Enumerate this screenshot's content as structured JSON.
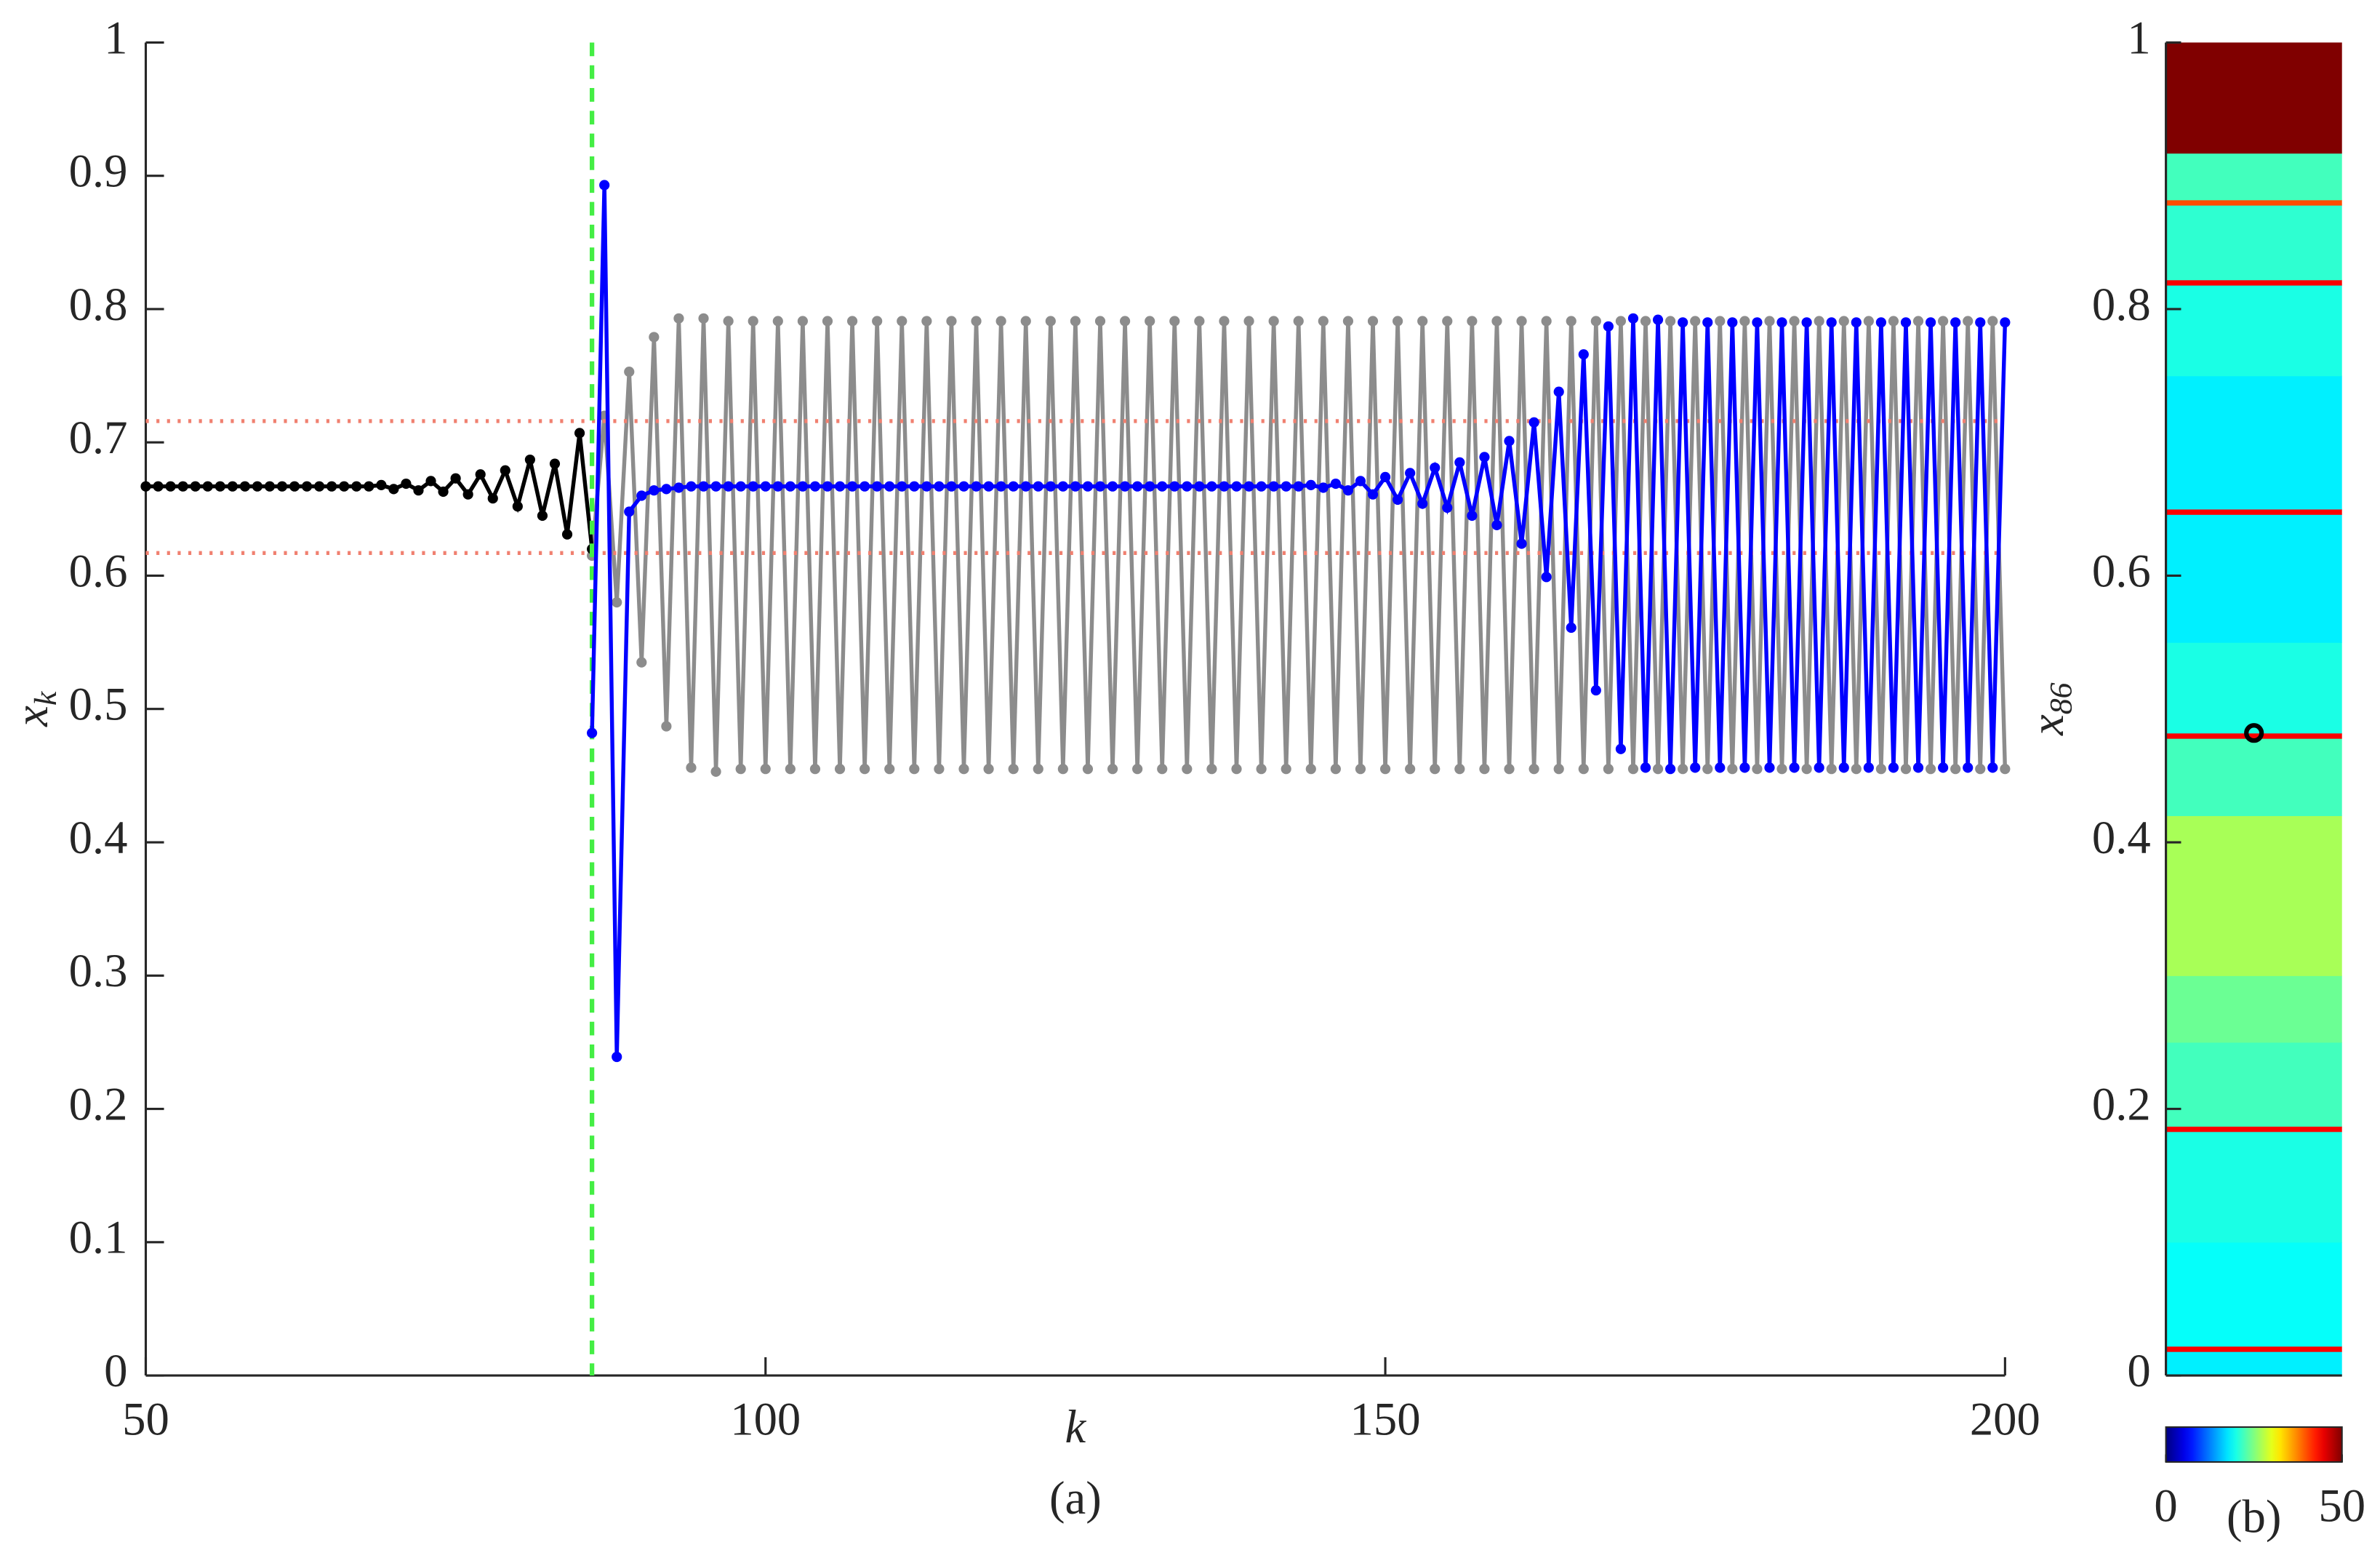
{
  "chart_data": [
    {
      "type": "line",
      "xlabel": "k",
      "caption": "(a)",
      "ylabel": {
        "text": "x",
        "sub": "k"
      },
      "xlim": [
        50,
        200
      ],
      "ylim": [
        0,
        1
      ],
      "xticks": [
        50,
        100,
        150,
        200
      ],
      "yticks": [
        0,
        0.1,
        0.2,
        0.3,
        0.4,
        0.5,
        0.6,
        0.7,
        0.8,
        0.9,
        1
      ],
      "markers": true,
      "series": [
        {
          "color": "#8c8c8c",
          "x": [
            86,
            87,
            88,
            89,
            90,
            91,
            92,
            93,
            94,
            95,
            96,
            97,
            98,
            99,
            100,
            101,
            102,
            103,
            104,
            105,
            106,
            107,
            108,
            109,
            110,
            111,
            112,
            113,
            114,
            115,
            116,
            117,
            118,
            119,
            120,
            121,
            122,
            123,
            124,
            125,
            126,
            127,
            128,
            129,
            130,
            131,
            132,
            133,
            134,
            135,
            136,
            137,
            138,
            139,
            140,
            141,
            142,
            143,
            144,
            145,
            146,
            147,
            148,
            149,
            150,
            151,
            152,
            153,
            154,
            155,
            156,
            157,
            158,
            159,
            160,
            161,
            162,
            163,
            164,
            165,
            166,
            167,
            168,
            169,
            170,
            171,
            172,
            173,
            174,
            175,
            176,
            177,
            178,
            179,
            180,
            181,
            182,
            183,
            184,
            185,
            186,
            187,
            188,
            189,
            190,
            191,
            192,
            193,
            194,
            195,
            196,
            197,
            198,
            199,
            200
          ],
          "values": [
            0.615,
            0.72,
            0.58,
            0.753,
            0.535,
            0.779,
            0.487,
            0.793,
            0.456,
            0.793,
            0.453,
            0.791,
            0.455,
            0.791,
            0.455,
            0.791,
            0.455,
            0.791,
            0.455,
            0.791,
            0.455,
            0.791,
            0.455,
            0.791,
            0.455,
            0.791,
            0.455,
            0.791,
            0.455,
            0.791,
            0.455,
            0.791,
            0.455,
            0.791,
            0.455,
            0.791,
            0.455,
            0.791,
            0.455,
            0.791,
            0.455,
            0.791,
            0.455,
            0.791,
            0.455,
            0.791,
            0.455,
            0.791,
            0.455,
            0.791,
            0.455,
            0.791,
            0.455,
            0.791,
            0.455,
            0.791,
            0.455,
            0.791,
            0.455,
            0.791,
            0.455,
            0.791,
            0.455,
            0.791,
            0.455,
            0.791,
            0.455,
            0.791,
            0.455,
            0.791,
            0.455,
            0.791,
            0.455,
            0.791,
            0.455,
            0.791,
            0.455,
            0.791,
            0.455,
            0.791,
            0.455,
            0.791,
            0.455,
            0.791,
            0.455,
            0.791,
            0.455,
            0.791,
            0.455,
            0.791,
            0.455,
            0.791,
            0.455,
            0.791,
            0.455,
            0.791,
            0.455,
            0.791,
            0.455,
            0.791,
            0.455,
            0.791,
            0.455,
            0.791,
            0.455,
            0.791,
            0.455,
            0.791,
            0.455,
            0.791,
            0.455,
            0.791,
            0.455,
            0.791,
            0.455
          ]
        },
        {
          "color": "#000000",
          "x": [
            50,
            51,
            52,
            53,
            54,
            55,
            56,
            57,
            58,
            59,
            60,
            61,
            62,
            63,
            64,
            65,
            66,
            67,
            68,
            69,
            70,
            71,
            72,
            73,
            74,
            75,
            76,
            77,
            78,
            79,
            80,
            81,
            82,
            83,
            84,
            85,
            86
          ],
          "values": [
            0.667,
            0.667,
            0.667,
            0.667,
            0.667,
            0.667,
            0.667,
            0.667,
            0.667,
            0.667,
            0.667,
            0.667,
            0.667,
            0.667,
            0.667,
            0.667,
            0.667,
            0.667,
            0.667,
            0.668,
            0.665,
            0.669,
            0.664,
            0.671,
            0.663,
            0.673,
            0.661,
            0.676,
            0.658,
            0.679,
            0.652,
            0.687,
            0.645,
            0.684,
            0.631,
            0.707,
            0.62
          ]
        },
        {
          "color": "#0000ff",
          "x": [
            86,
            87,
            88,
            89,
            90,
            91,
            92,
            93,
            94,
            95,
            96,
            97,
            98,
            99,
            100,
            101,
            102,
            103,
            104,
            105,
            106,
            107,
            108,
            109,
            110,
            111,
            112,
            113,
            114,
            115,
            116,
            117,
            118,
            119,
            120,
            121,
            122,
            123,
            124,
            125,
            126,
            127,
            128,
            129,
            130,
            131,
            132,
            133,
            134,
            135,
            136,
            137,
            138,
            139,
            140,
            141,
            142,
            143,
            144,
            145,
            146,
            147,
            148,
            149,
            150,
            151,
            152,
            153,
            154,
            155,
            156,
            157,
            158,
            159,
            160,
            161,
            162,
            163,
            164,
            165,
            166,
            167,
            168,
            169,
            170,
            171,
            172,
            173,
            174,
            175,
            176,
            177,
            178,
            179,
            180,
            181,
            182,
            183,
            184,
            185,
            186,
            187,
            188,
            189,
            190,
            191,
            192,
            193,
            194,
            195,
            196,
            197,
            198,
            199,
            200
          ],
          "values": [
            0.482,
            0.893,
            0.239,
            0.648,
            0.66,
            0.664,
            0.665,
            0.666,
            0.667,
            0.667,
            0.667,
            0.667,
            0.667,
            0.667,
            0.667,
            0.667,
            0.667,
            0.667,
            0.667,
            0.667,
            0.667,
            0.667,
            0.667,
            0.667,
            0.667,
            0.667,
            0.667,
            0.667,
            0.667,
            0.667,
            0.667,
            0.667,
            0.667,
            0.667,
            0.667,
            0.667,
            0.667,
            0.667,
            0.667,
            0.667,
            0.667,
            0.667,
            0.667,
            0.667,
            0.667,
            0.667,
            0.667,
            0.667,
            0.667,
            0.667,
            0.667,
            0.667,
            0.667,
            0.667,
            0.667,
            0.667,
            0.667,
            0.667,
            0.668,
            0.666,
            0.669,
            0.664,
            0.671,
            0.661,
            0.674,
            0.657,
            0.677,
            0.654,
            0.681,
            0.651,
            0.685,
            0.645,
            0.689,
            0.638,
            0.701,
            0.624,
            0.715,
            0.599,
            0.738,
            0.561,
            0.766,
            0.514,
            0.787,
            0.47,
            0.793,
            0.456,
            0.792,
            0.455,
            0.79,
            0.456,
            0.79,
            0.456,
            0.79,
            0.456,
            0.79,
            0.456,
            0.79,
            0.456,
            0.79,
            0.456,
            0.79,
            0.456,
            0.79,
            0.456,
            0.79,
            0.456,
            0.79,
            0.456,
            0.79,
            0.456,
            0.79,
            0.456,
            0.79,
            0.456,
            0.79
          ]
        }
      ],
      "hlines": [
        {
          "value": 0.716,
          "color": "#f08070",
          "style": "dotted"
        },
        {
          "value": 0.617,
          "color": "#f08070",
          "style": "dotted"
        }
      ],
      "vlines": [
        {
          "value": 86,
          "color": "#44ee44",
          "style": "dashed"
        }
      ]
    },
    {
      "type": "heatmap",
      "caption": "(b)",
      "ylabel": {
        "text": "x",
        "sub": "86"
      },
      "ylim": [
        0,
        1
      ],
      "yticks": [
        0,
        0.2,
        0.4,
        0.6,
        0.8,
        1
      ],
      "edges": [
        0,
        0.018,
        0.022,
        0.1,
        0.183,
        0.187,
        0.25,
        0.3,
        0.42,
        0.478,
        0.482,
        0.55,
        0.646,
        0.65,
        0.75,
        0.818,
        0.822,
        0.878,
        0.882,
        0.917,
        1
      ],
      "values": [
        18,
        44,
        19,
        20,
        44,
        22,
        24,
        27,
        22,
        44,
        20,
        18,
        44,
        18,
        20,
        44,
        21,
        40,
        22,
        50
      ],
      "colormap": "jet",
      "clim": [
        0,
        50
      ],
      "cticks": [
        0,
        50
      ],
      "point": 0.482
    }
  ]
}
